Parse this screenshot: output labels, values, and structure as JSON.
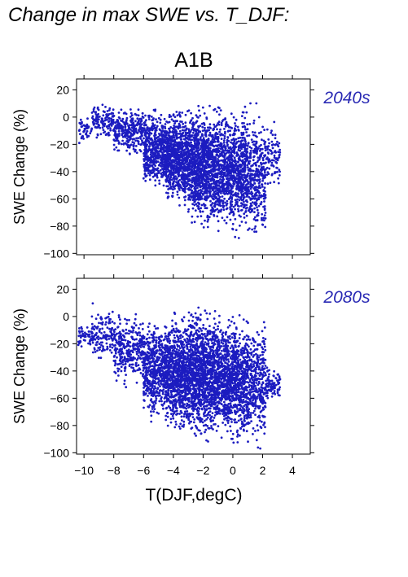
{
  "page_title": "Change in max SWE vs. T_DJF:",
  "scenario": "A1B",
  "colors": {
    "points": "#1c1cc0",
    "period_label": "#2a2ab4",
    "axis": "#000000"
  },
  "chart_data": [
    {
      "type": "scatter",
      "title": "A1B",
      "period_label": "2040s",
      "ylabel": "SWE Change (%)",
      "xlabel": "",
      "xlim": [
        -10.5,
        5.2
      ],
      "ylim": [
        -101,
        28
      ],
      "x_ticks": [
        -10,
        -8,
        -6,
        -4,
        -2,
        0,
        2,
        4
      ],
      "y_ticks": [
        20,
        0,
        -20,
        -40,
        -60,
        -80,
        -100
      ],
      "x_tick_labels_shown": false,
      "grid": false,
      "point_cloud": {
        "description_by_x_band": [
          {
            "x": [
              -10.4,
              -9.5
            ],
            "y": [
              -22,
              2
            ]
          },
          {
            "x": [
              -9.5,
              -8.0
            ],
            "y": [
              -18,
              12
            ]
          },
          {
            "x": [
              -8.0,
              -6.0
            ],
            "y": [
              -30,
              10
            ]
          },
          {
            "x": [
              -6.0,
              -4.5
            ],
            "y": [
              -60,
              10
            ]
          },
          {
            "x": [
              -4.5,
              -3.0
            ],
            "y": [
              -70,
              12
            ]
          },
          {
            "x": [
              -3.0,
              -1.0
            ],
            "y": [
              -88,
              15
            ]
          },
          {
            "x": [
              -1.0,
              1.0
            ],
            "y": [
              -92,
              14
            ]
          },
          {
            "x": [
              1.0,
              2.2
            ],
            "y": [
              -97,
              12
            ]
          },
          {
            "x": [
              2.2,
              3.2
            ],
            "y": [
              -60,
              2
            ]
          }
        ],
        "n_points": 4200
      }
    },
    {
      "type": "scatter",
      "title": "",
      "period_label": "2080s",
      "ylabel": "SWE Change (%)",
      "xlabel": "T(DJF,degC)",
      "xlim": [
        -10.5,
        5.2
      ],
      "ylim": [
        -101,
        28
      ],
      "x_ticks": [
        -10,
        -8,
        -6,
        -4,
        -2,
        0,
        2,
        4
      ],
      "x_tick_labels": [
        "−10",
        "−8",
        "−6",
        "−4",
        "−2",
        "0",
        "2",
        "4"
      ],
      "y_ticks": [
        20,
        0,
        -20,
        -40,
        -60,
        -80,
        -100
      ],
      "x_tick_labels_shown": true,
      "grid": false,
      "point_cloud": {
        "description_by_x_band": [
          {
            "x": [
              -10.4,
              -9.5
            ],
            "y": [
              -25,
              -5
            ]
          },
          {
            "x": [
              -9.5,
              -8.0
            ],
            "y": [
              -35,
              12
            ]
          },
          {
            "x": [
              -8.0,
              -6.0
            ],
            "y": [
              -55,
              5
            ]
          },
          {
            "x": [
              -6.0,
              -4.5
            ],
            "y": [
              -80,
              3
            ]
          },
          {
            "x": [
              -4.5,
              -3.0
            ],
            "y": [
              -92,
              8
            ]
          },
          {
            "x": [
              -3.0,
              -1.0
            ],
            "y": [
              -98,
              14
            ]
          },
          {
            "x": [
              -1.0,
              1.0
            ],
            "y": [
              -100,
              8
            ]
          },
          {
            "x": [
              1.0,
              2.2
            ],
            "y": [
              -100,
              2
            ]
          },
          {
            "x": [
              2.2,
              3.2
            ],
            "y": [
              -65,
              -35
            ]
          }
        ],
        "n_points": 4500
      }
    }
  ]
}
